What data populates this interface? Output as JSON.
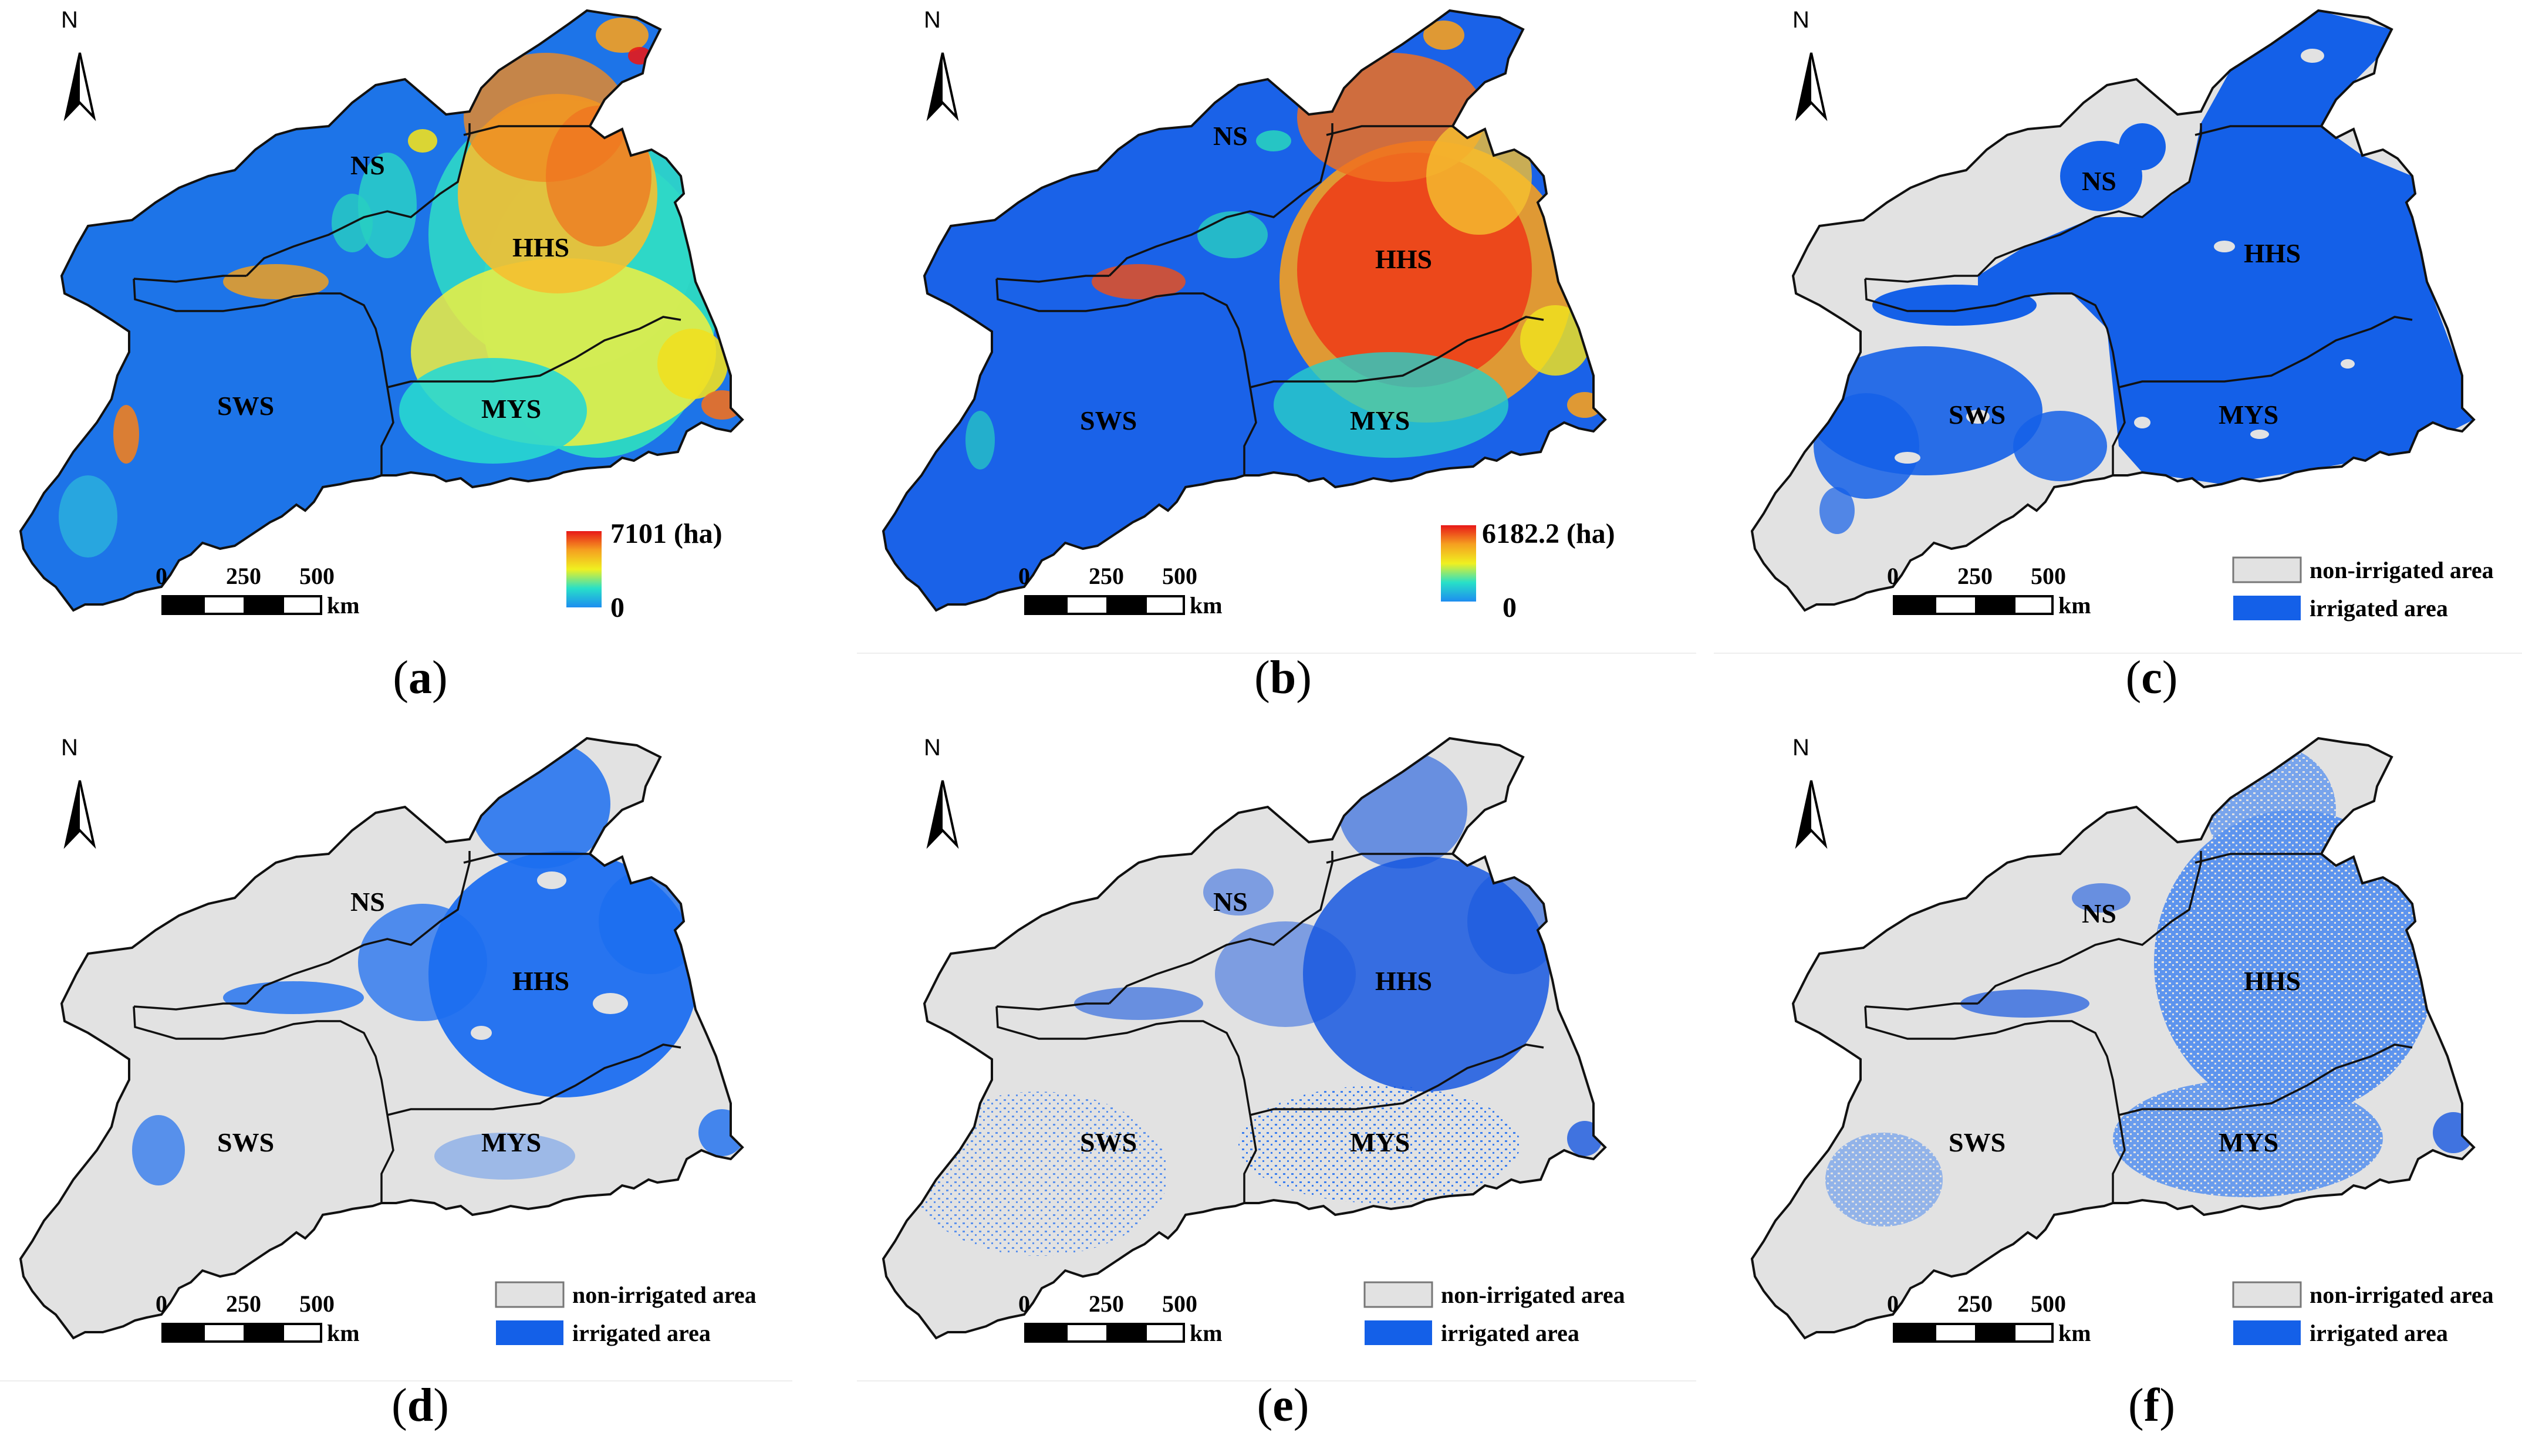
{
  "north_label": "N",
  "regions": {
    "ns": "NS",
    "hhs": "HHS",
    "sws": "SWS",
    "mys": "MYS"
  },
  "scalebar": {
    "t0": "0",
    "t1": "250",
    "t2": "500",
    "unit": "km"
  },
  "legend_cat": {
    "non": "non-irrigated area",
    "irr": "irrigated area"
  },
  "colors": {
    "non_irrigated": "#e0e0e0",
    "irrigated": "#1460e8",
    "boundary": "#111111"
  },
  "panels": [
    {
      "caption_letter": "a",
      "type": "continuous",
      "legend_max": "7101 (ha)",
      "legend_min": "0"
    },
    {
      "caption_letter": "b",
      "type": "continuous",
      "legend_max": "6182.2 (ha)",
      "legend_min": "0"
    },
    {
      "caption_letter": "c",
      "type": "categorical"
    },
    {
      "caption_letter": "d",
      "type": "categorical"
    },
    {
      "caption_letter": "e",
      "type": "categorical"
    },
    {
      "caption_letter": "f",
      "type": "categorical"
    }
  ]
}
